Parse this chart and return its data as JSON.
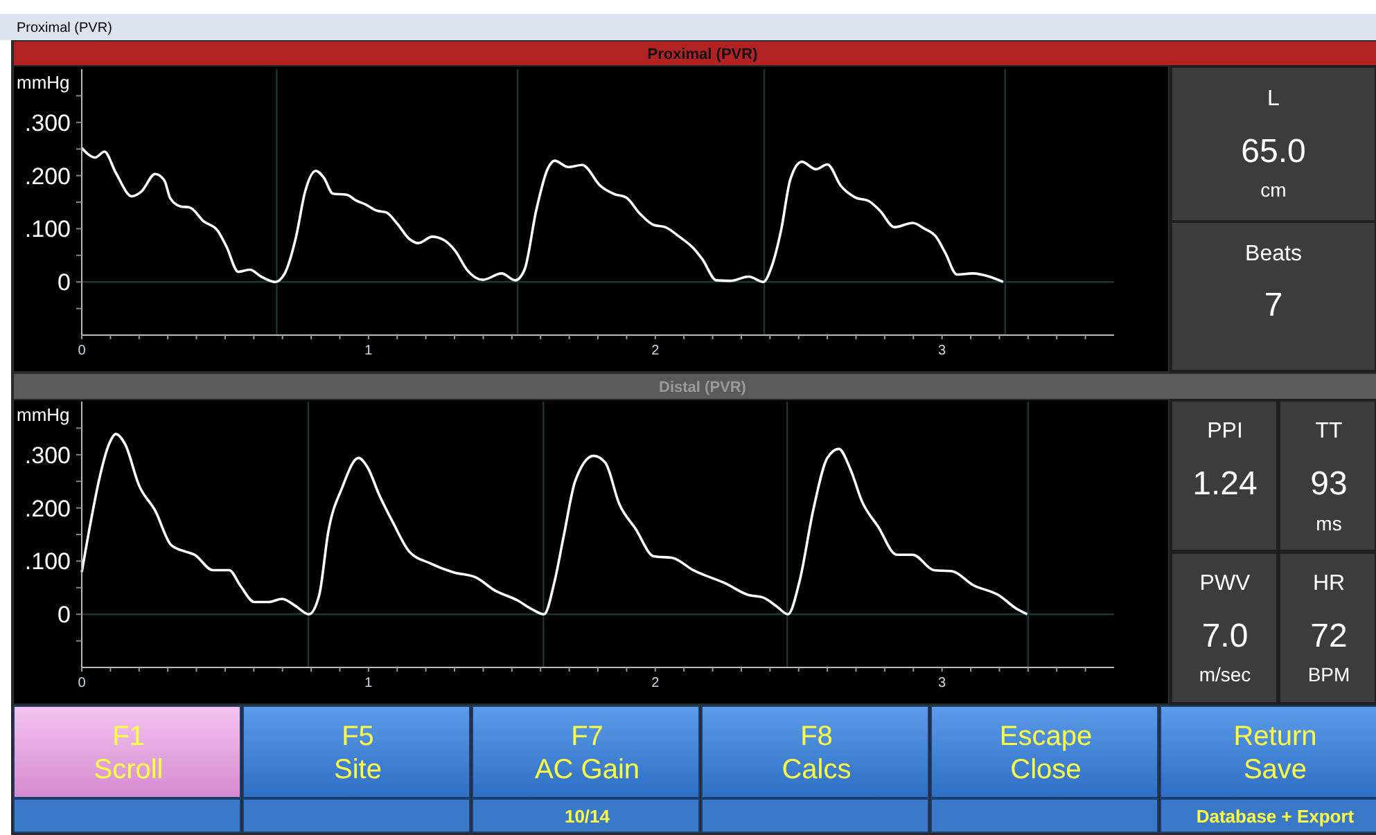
{
  "chart_data": [
    {
      "type": "line",
      "title": "Proximal (PVR)",
      "ylabel": "mmHg",
      "xlim": [
        0,
        3.6
      ],
      "ylim": [
        -0.1,
        0.4
      ],
      "xticks": [
        0,
        {
          "value": 0.1,
          "label": null
        },
        {
          "value": 0.2,
          "label": null
        },
        {
          "value": 0.3,
          "label": null
        },
        {
          "value": 0.4,
          "label": null
        },
        {
          "value": 0.5,
          "label": null
        },
        {
          "value": 0.6,
          "label": null
        },
        {
          "value": 0.7,
          "label": null
        },
        {
          "value": 0.8,
          "label": null
        },
        {
          "value": 0.9,
          "label": null
        },
        1,
        {
          "value": 1.1,
          "label": null
        },
        {
          "value": 1.2,
          "label": null
        },
        {
          "value": 1.3,
          "label": null
        },
        {
          "value": 1.4,
          "label": null
        },
        {
          "value": 1.5,
          "label": null
        },
        {
          "value": 1.6,
          "label": null
        },
        {
          "value": 1.7,
          "label": null
        },
        {
          "value": 1.8,
          "label": null
        },
        {
          "value": 1.9,
          "label": null
        },
        2,
        {
          "value": 2.1,
          "label": null
        },
        {
          "value": 2.2,
          "label": null
        },
        {
          "value": 2.3,
          "label": null
        },
        {
          "value": 2.4,
          "label": null
        },
        {
          "value": 2.5,
          "label": null
        },
        {
          "value": 2.6,
          "label": null
        },
        {
          "value": 2.7,
          "label": null
        },
        {
          "value": 2.8,
          "label": null
        },
        {
          "value": 2.9,
          "label": null
        },
        3,
        {
          "value": 3.1,
          "label": null
        },
        {
          "value": 3.2,
          "label": null
        },
        {
          "value": 3.3,
          "label": null
        },
        {
          "value": 3.4,
          "label": null
        },
        {
          "value": 3.5,
          "label": null
        }
      ],
      "yticks": [
        {
          "value": -0.05,
          "label": null
        },
        0,
        {
          "value": 0.05,
          "label": null
        },
        {
          "value": 0.1,
          "label": ".100"
        },
        {
          "value": 0.15,
          "label": null
        },
        {
          "value": 0.2,
          "label": ".200"
        },
        {
          "value": 0.25,
          "label": null
        },
        {
          "value": 0.3,
          "label": ".300"
        },
        {
          "value": 0.35,
          "label": null
        }
      ],
      "grid": false,
      "ref_lines": [
        {
          "axis": "y",
          "value": 0,
          "color": "#1c3434"
        },
        {
          "axis": "x",
          "value": 0.68,
          "color": "#1c3434"
        },
        {
          "axis": "x",
          "value": 1.52,
          "color": "#1c3434"
        },
        {
          "axis": "x",
          "value": 2.38,
          "color": "#1c3434"
        },
        {
          "axis": "x",
          "value": 3.22,
          "color": "#1c3434"
        }
      ],
      "series": [
        {
          "color": "#ffffff",
          "x": [
            0,
            0.047,
            0.079,
            0.119,
            0.175,
            0.208,
            0.256,
            0.288,
            0.309,
            0.345,
            0.377,
            0.425,
            0.473,
            0.505,
            0.546,
            0.586,
            0.626,
            0.675,
            0.707,
            0.747,
            0.779,
            0.816,
            0.844,
            0.876,
            0.924,
            0.957,
            0.989,
            1.029,
            1.061,
            1.101,
            1.142,
            1.174,
            1.222,
            1.262,
            1.303,
            1.343,
            1.399,
            1.464,
            1.512,
            1.544,
            1.585,
            1.625,
            1.649,
            1.697,
            1.745,
            1.81,
            1.858,
            1.898,
            1.947,
            1.995,
            2.035,
            2.084,
            2.132,
            2.165,
            2.213,
            2.261,
            2.326,
            2.377,
            2.406,
            2.439,
            2.471,
            2.511,
            2.56,
            2.6,
            2.648,
            2.697,
            2.745,
            2.785,
            2.834,
            2.898,
            2.939,
            2.979,
            3.011,
            3.052,
            3.108,
            3.165,
            3.213
          ],
          "values": [
            0.252,
            0.234,
            0.245,
            0.205,
            0.161,
            0.17,
            0.203,
            0.191,
            0.157,
            0.142,
            0.14,
            0.114,
            0.097,
            0.066,
            0.019,
            0.023,
            0.01,
            0,
            0.015,
            0.084,
            0.17,
            0.209,
            0.196,
            0.166,
            0.164,
            0.153,
            0.146,
            0.134,
            0.131,
            0.109,
            0.081,
            0.073,
            0.085,
            0.079,
            0.058,
            0.023,
            0.004,
            0.016,
            0.003,
            0.023,
            0.135,
            0.213,
            0.228,
            0.216,
            0.22,
            0.18,
            0.165,
            0.159,
            0.128,
            0.107,
            0.103,
            0.085,
            0.064,
            0.042,
            0.003,
            0.002,
            0.01,
            0,
            0.029,
            0.098,
            0.193,
            0.226,
            0.212,
            0.221,
            0.18,
            0.159,
            0.152,
            0.133,
            0.103,
            0.111,
            0.1,
            0.085,
            0.055,
            0.014,
            0.016,
            0.01,
            0
          ]
        }
      ]
    },
    {
      "type": "line",
      "title": "Distal (PVR)",
      "ylabel": "mmHg",
      "xlim": [
        0,
        3.6
      ],
      "ylim": [
        -0.1,
        0.4
      ],
      "xticks": [
        0,
        {
          "value": 0.1,
          "label": null
        },
        {
          "value": 0.2,
          "label": null
        },
        {
          "value": 0.3,
          "label": null
        },
        {
          "value": 0.4,
          "label": null
        },
        {
          "value": 0.5,
          "label": null
        },
        {
          "value": 0.6,
          "label": null
        },
        {
          "value": 0.7,
          "label": null
        },
        {
          "value": 0.8,
          "label": null
        },
        {
          "value": 0.9,
          "label": null
        },
        1,
        {
          "value": 1.1,
          "label": null
        },
        {
          "value": 1.2,
          "label": null
        },
        {
          "value": 1.3,
          "label": null
        },
        {
          "value": 1.4,
          "label": null
        },
        {
          "value": 1.5,
          "label": null
        },
        {
          "value": 1.6,
          "label": null
        },
        {
          "value": 1.7,
          "label": null
        },
        {
          "value": 1.8,
          "label": null
        },
        {
          "value": 1.9,
          "label": null
        },
        2,
        {
          "value": 2.1,
          "label": null
        },
        {
          "value": 2.2,
          "label": null
        },
        {
          "value": 2.3,
          "label": null
        },
        {
          "value": 2.4,
          "label": null
        },
        {
          "value": 2.5,
          "label": null
        },
        {
          "value": 2.6,
          "label": null
        },
        {
          "value": 2.7,
          "label": null
        },
        {
          "value": 2.8,
          "label": null
        },
        {
          "value": 2.9,
          "label": null
        },
        3,
        {
          "value": 3.1,
          "label": null
        },
        {
          "value": 3.2,
          "label": null
        },
        {
          "value": 3.3,
          "label": null
        },
        {
          "value": 3.4,
          "label": null
        },
        {
          "value": 3.5,
          "label": null
        }
      ],
      "yticks": [
        {
          "value": -0.05,
          "label": null
        },
        0,
        {
          "value": 0.05,
          "label": null
        },
        {
          "value": 0.1,
          "label": ".100"
        },
        {
          "value": 0.15,
          "label": null
        },
        {
          "value": 0.2,
          "label": ".200"
        },
        {
          "value": 0.25,
          "label": null
        },
        {
          "value": 0.3,
          "label": ".300"
        },
        {
          "value": 0.35,
          "label": null
        }
      ],
      "grid": false,
      "ref_lines": [
        {
          "axis": "y",
          "value": 0,
          "color": "#1c3434"
        },
        {
          "axis": "x",
          "value": 0.79,
          "color": "#1c3434"
        },
        {
          "axis": "x",
          "value": 1.61,
          "color": "#1c3434"
        },
        {
          "axis": "x",
          "value": 2.46,
          "color": "#1c3434"
        },
        {
          "axis": "x",
          "value": 3.3,
          "color": "#1c3434"
        }
      ],
      "series": [
        {
          "color": "#ffffff",
          "x": [
            0,
            0.031,
            0.063,
            0.095,
            0.119,
            0.151,
            0.2,
            0.256,
            0.312,
            0.361,
            0.393,
            0.457,
            0.514,
            0.554,
            0.602,
            0.651,
            0.699,
            0.747,
            0.792,
            0.828,
            0.86,
            0.908,
            0.965,
            0.997,
            1.037,
            1.085,
            1.142,
            1.214,
            1.295,
            1.375,
            1.44,
            1.52,
            1.568,
            1.612,
            1.648,
            1.681,
            1.721,
            1.785,
            1.826,
            1.874,
            1.931,
            1.995,
            2.06,
            2.132,
            2.245,
            2.326,
            2.374,
            2.423,
            2.463,
            2.503,
            2.552,
            2.6,
            2.64,
            2.681,
            2.721,
            2.777,
            2.842,
            2.898,
            2.971,
            3.035,
            3.108,
            3.197,
            3.261,
            3.297
          ],
          "values": [
            0.079,
            0.173,
            0.259,
            0.32,
            0.339,
            0.32,
            0.242,
            0.195,
            0.13,
            0.118,
            0.112,
            0.083,
            0.083,
            0.053,
            0.023,
            0.023,
            0.029,
            0.015,
            0,
            0.036,
            0.156,
            0.238,
            0.294,
            0.276,
            0.225,
            0.173,
            0.118,
            0.096,
            0.079,
            0.069,
            0.045,
            0.026,
            0.01,
            0,
            0.06,
            0.148,
            0.251,
            0.298,
            0.285,
            0.208,
            0.161,
            0.109,
            0.106,
            0.083,
            0.058,
            0.036,
            0.032,
            0.015,
            0,
            0.062,
            0.199,
            0.294,
            0.311,
            0.272,
            0.212,
            0.165,
            0.112,
            0.112,
            0.083,
            0.081,
            0.055,
            0.036,
            0.01,
            0
          ]
        }
      ]
    },
    {
      "type": "other",
      "annotations": [
        "L",
        "65.0",
        "cm",
        "Beats",
        "7"
      ]
    },
    {
      "type": "other",
      "annotations": [
        "PPI",
        "1.24",
        "TT",
        "93",
        "ms",
        "PWV",
        "7.0",
        "m/sec",
        "HR",
        "72",
        "BPM"
      ]
    },
    {
      "type": "other",
      "title": "Proximal (PVR)",
      "annotations": [
        "F1",
        "Scroll",
        "F5",
        "Site",
        "F7",
        "AC Gain",
        "F8",
        "Calcs",
        "Escape",
        "Close",
        "Return",
        "Save",
        "10/14",
        "Database + Export"
      ]
    }
  ]
}
